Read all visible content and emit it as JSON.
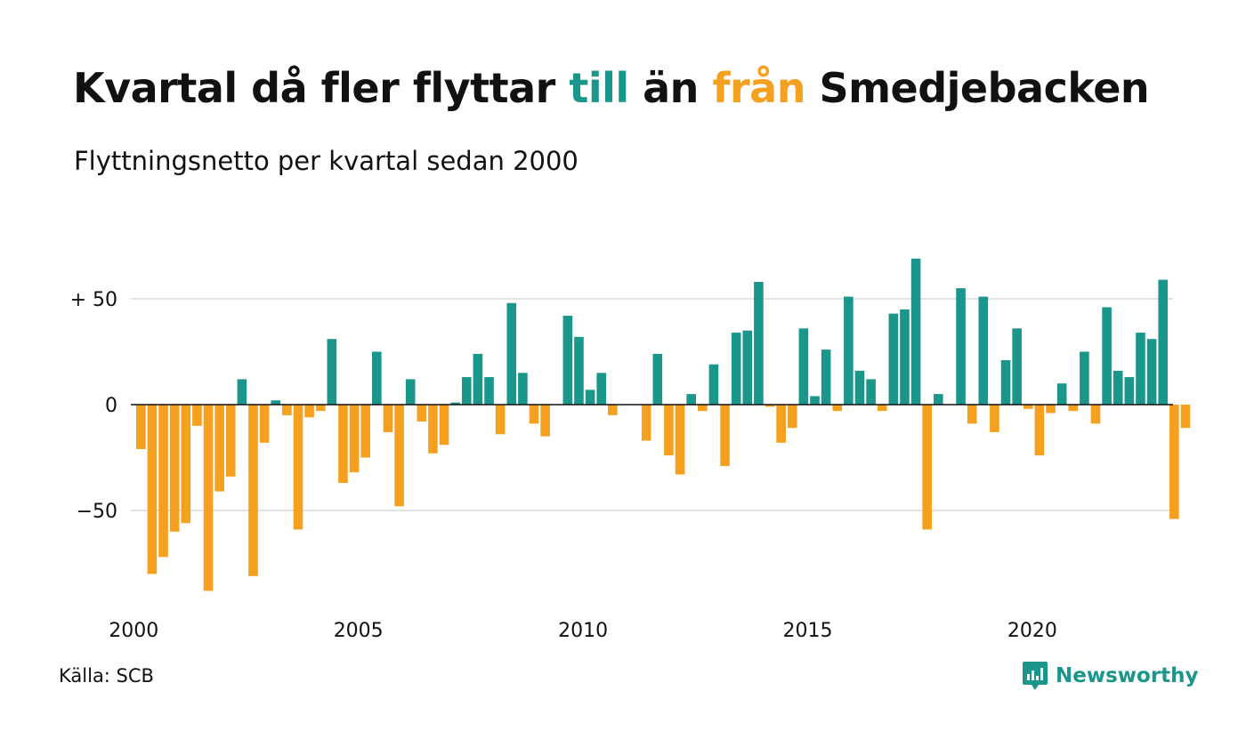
{
  "title": {
    "part1": "Kvartal då fler flyttar ",
    "to_word": "till",
    "part2": " än ",
    "from_word": "från",
    "part3": " Smedjebacken"
  },
  "subtitle": "Flyttningsnetto per kvartal sedan 2000",
  "source": "Källa: SCB",
  "brand": "Newsworthy",
  "colors": {
    "positive": "#1b968a",
    "negative": "#f5a01f",
    "grid": "#e3e3e3",
    "baseline": "#111111",
    "brand": "#1b968a",
    "text": "#111111"
  },
  "chart_data": {
    "type": "bar",
    "ylim": [
      -95,
      72
    ],
    "grid": true,
    "y_ticks": [
      {
        "value": 50,
        "label": "+ 50"
      },
      {
        "value": 0,
        "label": "0"
      },
      {
        "value": -50,
        "label": "−50"
      }
    ],
    "x_ticks": [
      "2000",
      "2005",
      "2010",
      "2015",
      "2020"
    ],
    "categories": [
      "2000 K1",
      "2000 K2",
      "2000 K3",
      "2000 K4",
      "2001 K1",
      "2001 K2",
      "2001 K3",
      "2001 K4",
      "2002 K1",
      "2002 K2",
      "2002 K3",
      "2002 K4",
      "2003 K1",
      "2003 K2",
      "2003 K3",
      "2003 K4",
      "2004 K1",
      "2004 K2",
      "2004 K3",
      "2004 K4",
      "2005 K1",
      "2005 K2",
      "2005 K3",
      "2005 K4",
      "2006 K1",
      "2006 K2",
      "2006 K3",
      "2006 K4",
      "2007 K1",
      "2007 K2",
      "2007 K3",
      "2007 K4",
      "2008 K1",
      "2008 K2",
      "2008 K3",
      "2008 K4",
      "2009 K1",
      "2009 K2",
      "2009 K3",
      "2009 K4",
      "2010 K1",
      "2010 K2",
      "2010 K3",
      "2010 K4",
      "2011 K1",
      "2011 K2",
      "2011 K3",
      "2011 K4",
      "2012 K1",
      "2012 K2",
      "2012 K3",
      "2012 K4",
      "2013 K1",
      "2013 K2",
      "2013 K3",
      "2013 K4",
      "2014 K1",
      "2014 K2",
      "2014 K3",
      "2014 K4",
      "2015 K1",
      "2015 K2",
      "2015 K3",
      "2015 K4",
      "2016 K1",
      "2016 K2",
      "2016 K3",
      "2016 K4",
      "2017 K1",
      "2017 K2",
      "2017 K3",
      "2017 K4",
      "2018 K1",
      "2018 K2",
      "2018 K3",
      "2018 K4",
      "2019 K1",
      "2019 K2",
      "2019 K3",
      "2019 K4",
      "2020 K1",
      "2020 K2",
      "2020 K3",
      "2020 K4",
      "2021 K1",
      "2021 K2",
      "2021 K3",
      "2021 K4",
      "2022 K1",
      "2022 K2",
      "2022 K3",
      "2022 K4",
      "2023 K1",
      "2023 K2"
    ],
    "values": [
      -21,
      -80,
      -72,
      -60,
      -56,
      -10,
      -88,
      -41,
      -34,
      12,
      -81,
      -18,
      2,
      -5,
      -59,
      -6,
      -3,
      31,
      -37,
      -32,
      -25,
      25,
      -13,
      -48,
      12,
      -8,
      -23,
      -19,
      1,
      13,
      24,
      13,
      -14,
      48,
      15,
      -9,
      -15,
      0,
      42,
      32,
      7,
      15,
      -5,
      0,
      0,
      -17,
      24,
      -24,
      -33,
      5,
      -3,
      19,
      -29,
      34,
      35,
      58,
      -1,
      -18,
      -11,
      36,
      4,
      26,
      -3,
      51,
      16,
      12,
      -3,
      43,
      45,
      69,
      -59,
      5,
      0,
      55,
      -9,
      51,
      -13,
      21,
      36,
      -2,
      -24,
      -4,
      10,
      -3,
      25,
      -9,
      46,
      16,
      13,
      34,
      31,
      59,
      -54,
      -11
    ]
  }
}
